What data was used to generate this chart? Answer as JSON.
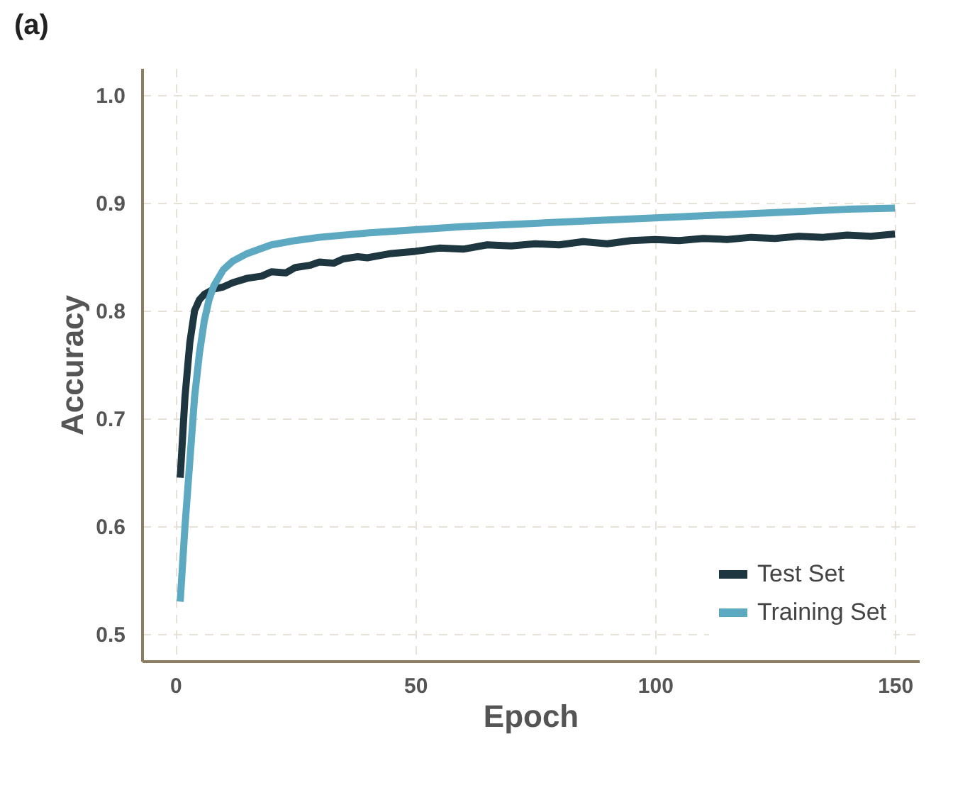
{
  "chart_data": {
    "type": "line",
    "title": "(a)",
    "xlabel": "Epoch",
    "ylabel": "Accuracy",
    "xlim": [
      -7,
      155
    ],
    "ylim": [
      0.475,
      1.025
    ],
    "xticks": [
      0,
      50,
      100,
      150
    ],
    "yticks": [
      0.5,
      0.6,
      0.7,
      0.8,
      0.9,
      {
        "value": 1,
        "label": "1.0"
      }
    ],
    "grid": true,
    "legend": "bottom right",
    "line_style": "solid",
    "marker": "none",
    "series": [
      {
        "name": "Test Set",
        "color": "#1e3640",
        "x": [
          1,
          2,
          3,
          4,
          5,
          6,
          8,
          10,
          12,
          15,
          18,
          20,
          23,
          25,
          28,
          30,
          33,
          35,
          38,
          40,
          45,
          50,
          55,
          60,
          65,
          70,
          75,
          80,
          85,
          90,
          95,
          100,
          105,
          110,
          115,
          120,
          125,
          130,
          135,
          140,
          145,
          150
        ],
        "values": [
          0.645,
          0.72,
          0.77,
          0.8,
          0.81,
          0.815,
          0.82,
          0.822,
          0.826,
          0.83,
          0.832,
          0.836,
          0.835,
          0.84,
          0.842,
          0.845,
          0.844,
          0.848,
          0.85,
          0.849,
          0.853,
          0.855,
          0.858,
          0.857,
          0.861,
          0.86,
          0.862,
          0.861,
          0.864,
          0.862,
          0.865,
          0.866,
          0.865,
          0.867,
          0.866,
          0.868,
          0.867,
          0.869,
          0.868,
          0.87,
          0.869,
          0.871
        ]
      },
      {
        "name": "Training Set",
        "color": "#5ea9c2",
        "x": [
          1,
          2,
          3,
          4,
          5,
          6,
          7,
          8,
          10,
          12,
          15,
          20,
          25,
          30,
          40,
          50,
          60,
          70,
          80,
          90,
          100,
          110,
          120,
          130,
          140,
          150
        ],
        "values": [
          0.53,
          0.6,
          0.66,
          0.72,
          0.76,
          0.79,
          0.81,
          0.823,
          0.838,
          0.846,
          0.853,
          0.861,
          0.865,
          0.868,
          0.872,
          0.875,
          0.878,
          0.88,
          0.882,
          0.884,
          0.886,
          0.888,
          0.89,
          0.892,
          0.894,
          0.895
        ]
      }
    ]
  }
}
